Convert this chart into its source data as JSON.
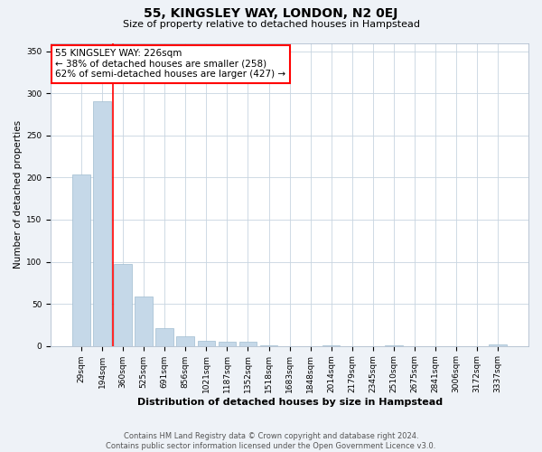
{
  "title1": "55, KINGSLEY WAY, LONDON, N2 0EJ",
  "title2": "Size of property relative to detached houses in Hampstead",
  "xlabel": "Distribution of detached houses by size in Hampstead",
  "ylabel": "Number of detached properties",
  "categories": [
    "29sqm",
    "194sqm",
    "360sqm",
    "525sqm",
    "691sqm",
    "856sqm",
    "1021sqm",
    "1187sqm",
    "1352sqm",
    "1518sqm",
    "1683sqm",
    "1848sqm",
    "2014sqm",
    "2179sqm",
    "2345sqm",
    "2510sqm",
    "2675sqm",
    "2841sqm",
    "3006sqm",
    "3172sqm",
    "3337sqm"
  ],
  "values": [
    204,
    291,
    97,
    59,
    21,
    11,
    6,
    5,
    5,
    1,
    0,
    0,
    1,
    0,
    0,
    1,
    0,
    0,
    0,
    0,
    2
  ],
  "bar_color": "#c5d8e8",
  "bar_edgecolor": "#a0bcd0",
  "property_line_x": 1.5,
  "annotation_text": "55 KINGSLEY WAY: 226sqm\n← 38% of detached houses are smaller (258)\n62% of semi-detached houses are larger (427) →",
  "annotation_box_color": "white",
  "annotation_box_edgecolor": "red",
  "property_line_color": "red",
  "ylim": [
    0,
    360
  ],
  "yticks": [
    0,
    50,
    100,
    150,
    200,
    250,
    300,
    350
  ],
  "footer": "Contains HM Land Registry data © Crown copyright and database right 2024.\nContains public sector information licensed under the Open Government Licence v3.0.",
  "background_color": "#eef2f7",
  "plot_background": "#ffffff",
  "grid_color": "#c8d4e0",
  "title1_fontsize": 10,
  "title2_fontsize": 8,
  "xlabel_fontsize": 8,
  "ylabel_fontsize": 7.5,
  "tick_fontsize": 6.5,
  "annotation_fontsize": 7.5,
  "footer_fontsize": 6
}
